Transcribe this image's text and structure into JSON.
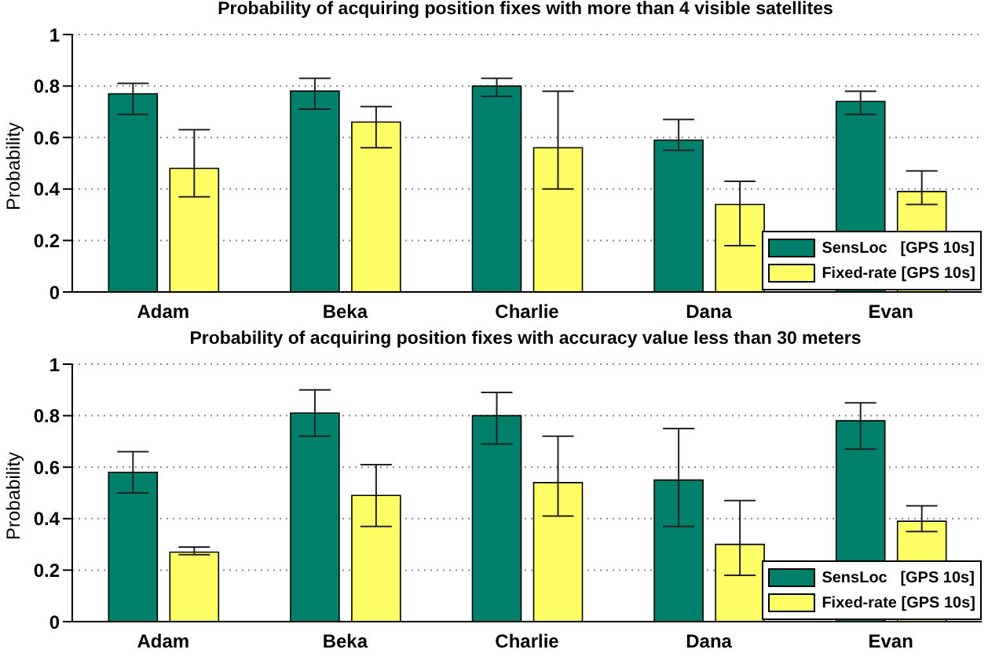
{
  "chart_data": [
    {
      "type": "bar",
      "title": "Probability of acquiring position fixes with more than 4 visible satellites",
      "ylabel": "Probability",
      "categories": [
        "Adam",
        "Beka",
        "Charlie",
        "Dana",
        "Evan"
      ],
      "series": [
        {
          "name": "SensLoc   [GPS 10s]",
          "color": "#00806a",
          "values": [
            0.77,
            0.78,
            0.8,
            0.59,
            0.74
          ],
          "errors": [
            [
              0.69,
              0.81
            ],
            [
              0.71,
              0.83
            ],
            [
              0.76,
              0.83
            ],
            [
              0.55,
              0.67
            ],
            [
              0.69,
              0.78
            ]
          ]
        },
        {
          "name": "Fixed-rate [GPS 10s]",
          "color": "#ffff66",
          "values": [
            0.48,
            0.66,
            0.56,
            0.34,
            0.39
          ],
          "errors": [
            [
              0.37,
              0.63
            ],
            [
              0.56,
              0.72
            ],
            [
              0.4,
              0.78
            ],
            [
              0.18,
              0.43
            ],
            [
              0.34,
              0.47
            ]
          ]
        }
      ],
      "ylim": [
        0,
        1
      ],
      "yticks": [
        0,
        0.2,
        0.4,
        0.6,
        0.8,
        1
      ],
      "grid": "y",
      "legend": "bottom right"
    },
    {
      "type": "bar",
      "title": "Probability of acquiring position fixes with accuracy value less than 30 meters",
      "ylabel": "Probability",
      "categories": [
        "Adam",
        "Beka",
        "Charlie",
        "Dana",
        "Evan"
      ],
      "series": [
        {
          "name": "SensLoc   [GPS 10s]",
          "color": "#00806a",
          "values": [
            0.58,
            0.81,
            0.8,
            0.55,
            0.78
          ],
          "errors": [
            [
              0.5,
              0.66
            ],
            [
              0.72,
              0.9
            ],
            [
              0.69,
              0.89
            ],
            [
              0.37,
              0.75
            ],
            [
              0.67,
              0.85
            ]
          ]
        },
        {
          "name": "Fixed-rate [GPS 10s]",
          "color": "#ffff66",
          "values": [
            0.27,
            0.49,
            0.54,
            0.3,
            0.39
          ],
          "errors": [
            [
              0.26,
              0.29
            ],
            [
              0.37,
              0.61
            ],
            [
              0.41,
              0.72
            ],
            [
              0.18,
              0.47
            ],
            [
              0.35,
              0.45
            ]
          ]
        }
      ],
      "ylim": [
        0,
        1
      ],
      "yticks": [
        0,
        0.2,
        0.4,
        0.6,
        0.8,
        1
      ],
      "grid": "y",
      "legend": "bottom right"
    }
  ]
}
